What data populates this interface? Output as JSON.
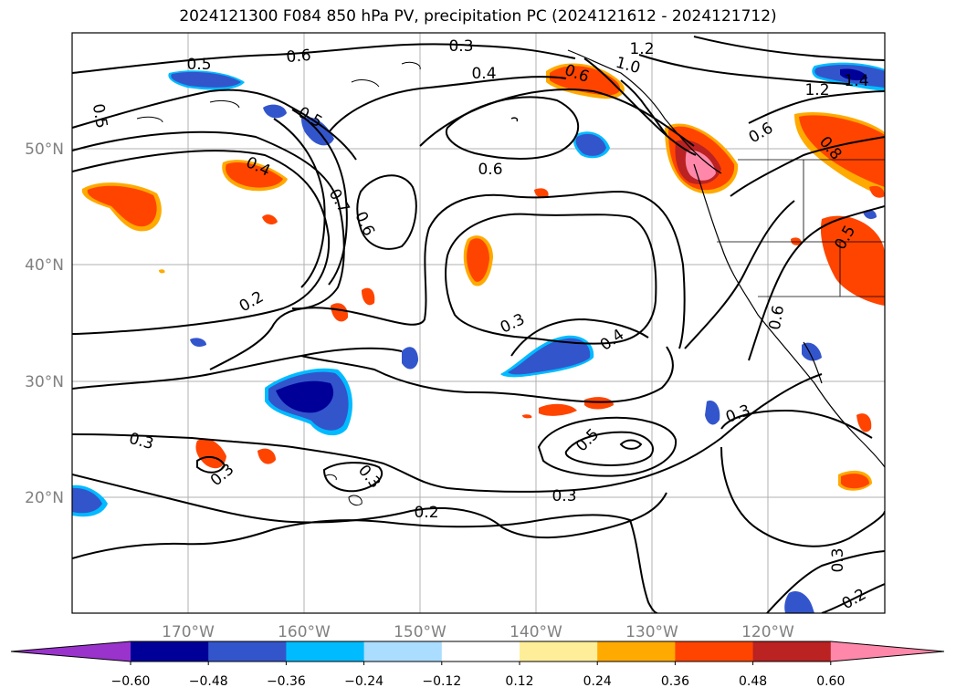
{
  "title": "2024121300 F084 850 hPa PV, precipitation PC (2024121612 - 2024121712)",
  "map": {
    "lon_labels": [
      "170°W",
      "160°W",
      "150°W",
      "140°W",
      "130°W",
      "120°W"
    ],
    "lat_labels": [
      "50°N",
      "40°N",
      "30°N",
      "20°N"
    ],
    "contour_labels": [
      {
        "text": "0.5"
      },
      {
        "text": "0.6"
      },
      {
        "text": "0.3"
      },
      {
        "text": "1.2"
      },
      {
        "text": "1.0"
      },
      {
        "text": "0.4"
      },
      {
        "text": "0.6"
      },
      {
        "text": "0.5"
      },
      {
        "text": "0.5"
      },
      {
        "text": "1.2"
      },
      {
        "text": "0.6"
      },
      {
        "text": "0.4"
      },
      {
        "text": "0.6"
      },
      {
        "text": "0.7"
      },
      {
        "text": "0.6"
      },
      {
        "text": "0.8"
      },
      {
        "text": "0.5"
      },
      {
        "text": "0.2"
      },
      {
        "text": "0.3"
      },
      {
        "text": "0.4"
      },
      {
        "text": "0.6"
      },
      {
        "text": "0.3"
      },
      {
        "text": "0.3"
      },
      {
        "text": "0.5"
      },
      {
        "text": "0.3"
      },
      {
        "text": "0.3"
      },
      {
        "text": "0.2"
      },
      {
        "text": "0.3"
      },
      {
        "text": "0.3"
      },
      {
        "text": "0.2"
      },
      {
        "text": "1.4"
      }
    ]
  },
  "colorbar": {
    "ticks": [
      "−0.60",
      "−0.48",
      "−0.36",
      "−0.24",
      "−0.12",
      "0.12",
      "0.24",
      "0.36",
      "0.48",
      "0.60"
    ],
    "colors": [
      "#9933cc",
      "#000099",
      "#3355cc",
      "#00bbff",
      "#aaddff",
      "#ffffff",
      "#ffee99",
      "#ffaa00",
      "#ff4400",
      "#bb2222",
      "#ff88aa"
    ]
  }
}
